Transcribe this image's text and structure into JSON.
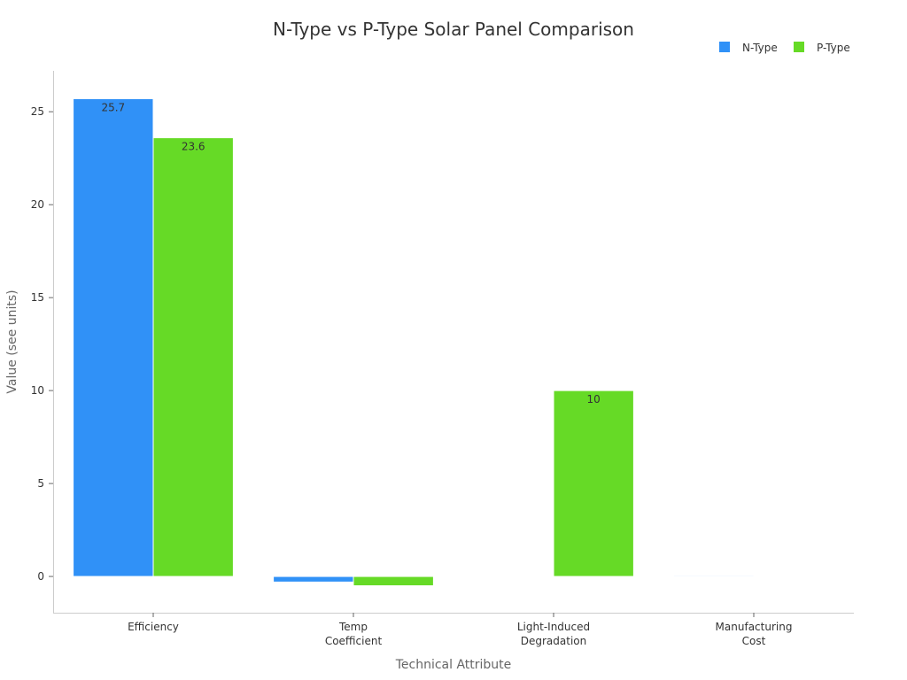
{
  "chart_data": {
    "type": "bar",
    "title": "N-Type vs P-Type Solar Panel Comparison",
    "xlabel": "Technical Attribute",
    "ylabel": "Value (see units)",
    "categories": [
      [
        "Efficiency"
      ],
      [
        "Temp",
        "Coefficient"
      ],
      [
        "Light-Induced",
        "Degradation"
      ],
      [
        "Manufacturing",
        "Cost"
      ]
    ],
    "series": [
      {
        "name": "N-Type",
        "color": "#3091F7",
        "values": [
          25.7,
          -0.3,
          0,
          0.05
        ],
        "labels": [
          "25.7",
          "",
          "",
          ""
        ]
      },
      {
        "name": "P-Type",
        "color": "#66DA26",
        "values": [
          23.6,
          -0.5,
          10,
          0.04
        ],
        "labels": [
          "23.6",
          "",
          "10",
          ""
        ]
      }
    ],
    "yticks": [
      0,
      5,
      10,
      15,
      20,
      25
    ],
    "ylim": [
      -1.95,
      27.2
    ],
    "grid": false,
    "legend_position": "top-right"
  }
}
